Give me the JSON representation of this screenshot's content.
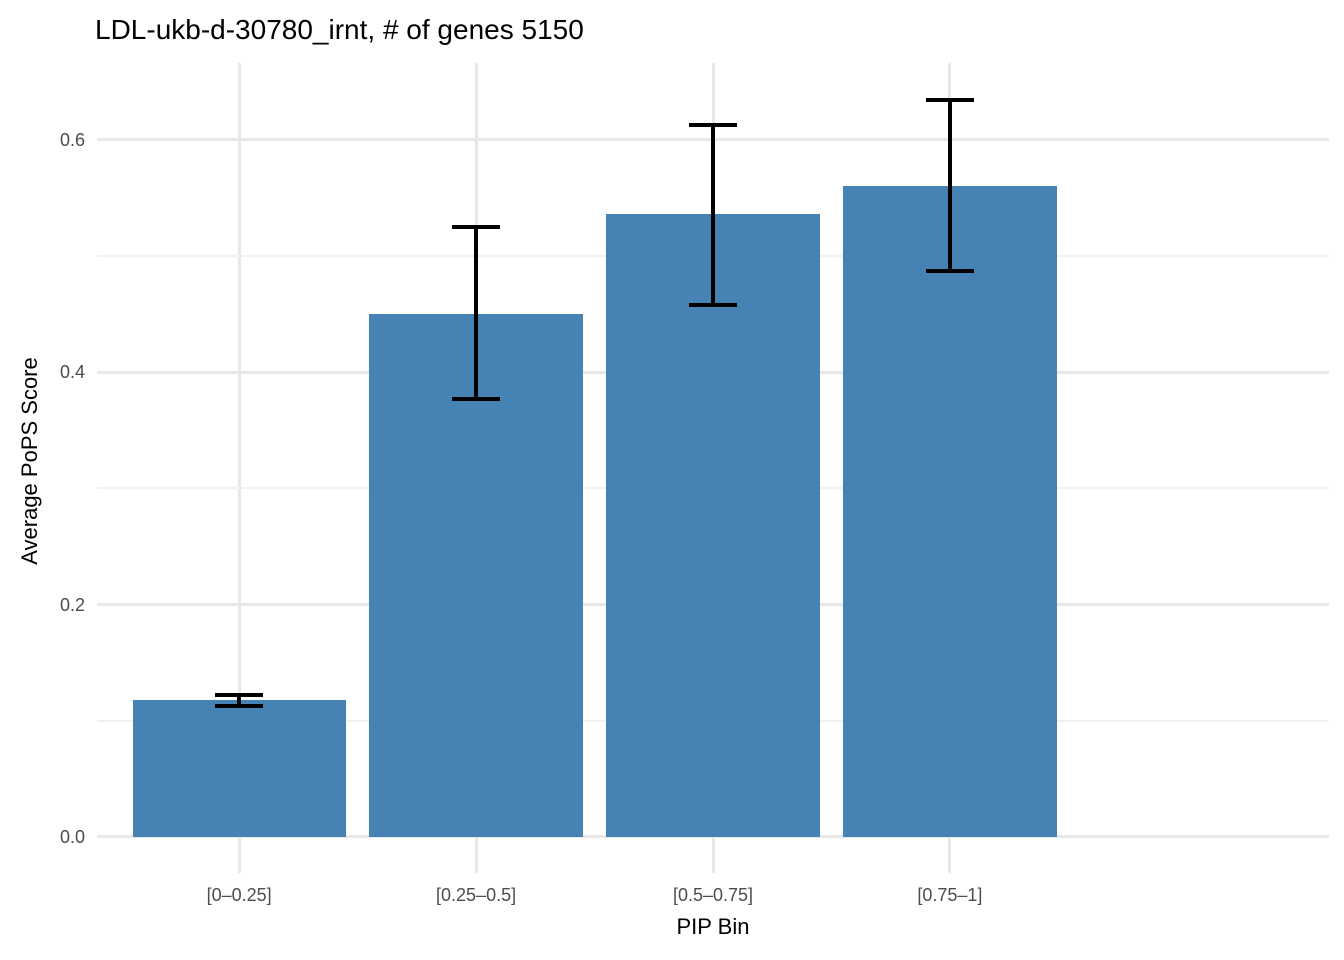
{
  "figure": {
    "title": "LDL-ukb-d-30780_irnt, # of genes 5150"
  },
  "chart_data": {
    "type": "bar",
    "title": "LDL-ukb-d-30780_irnt, # of genes 5150",
    "xlabel": "PIP Bin",
    "ylabel": "Average PoPS Score",
    "categories": [
      "[0–0.25]",
      "[0.25–0.5]",
      "[0.5–0.75]",
      "[0.75–1]"
    ],
    "values": [
      0.118,
      0.45,
      0.536,
      0.56
    ],
    "error_low": [
      0.113,
      0.377,
      0.458,
      0.487
    ],
    "error_high": [
      0.122,
      0.525,
      0.613,
      0.634
    ],
    "ytick_labels": [
      "0.0",
      "0.2",
      "0.4",
      "0.6"
    ],
    "yticks": [
      0.0,
      0.2,
      0.4,
      0.6
    ],
    "minor_yticks": [
      0.1,
      0.3,
      0.5
    ],
    "ylim": [
      -0.031,
      0.666
    ],
    "grid": true,
    "legend": false,
    "colors": {
      "bar_fill": "#4682B4",
      "error_bar": "#000000",
      "major_grid": "#E8E8E8",
      "minor_grid": "#F1F1F1",
      "axis_text": "#4D4D4D",
      "title_text": "#000000"
    }
  }
}
